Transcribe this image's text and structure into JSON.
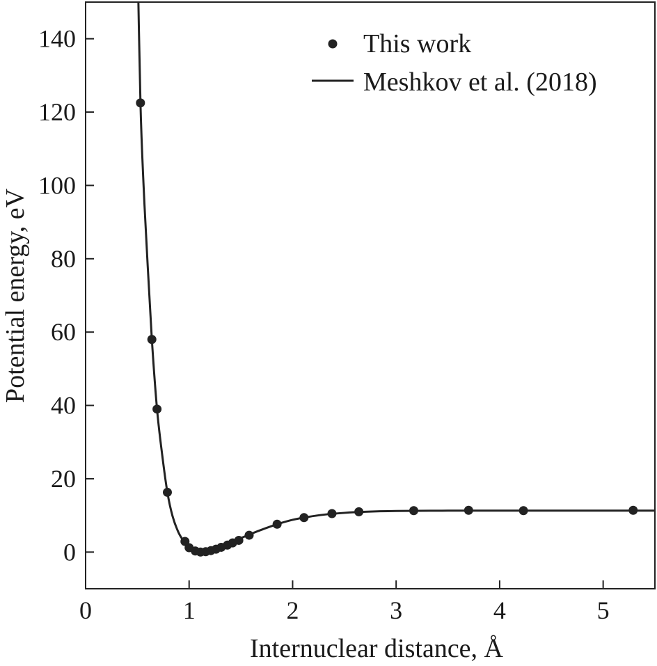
{
  "chart_data": {
    "type": "line",
    "title": "",
    "xlabel": "Internuclear distance, Å",
    "ylabel": "Potential energy, eV",
    "xlim": [
      0,
      5.5
    ],
    "ylim": [
      -10,
      150
    ],
    "x_ticks": [
      0,
      1,
      2,
      3,
      4,
      5
    ],
    "x_tick_labels": [
      "0",
      "1",
      "2",
      "3",
      "4",
      "5"
    ],
    "y_ticks": [
      0,
      20,
      40,
      60,
      80,
      100,
      120,
      140
    ],
    "y_tick_labels": [
      "0",
      "20",
      "40",
      "60",
      "80",
      "100",
      "120",
      "140"
    ],
    "grid": false,
    "legend_position": "top-right",
    "series": [
      {
        "name": "This work",
        "style": "markers",
        "color": "#222222",
        "x": [
          0.53,
          0.64,
          0.69,
          0.79,
          0.96,
          1.0,
          1.06,
          1.11,
          1.16,
          1.21,
          1.26,
          1.31,
          1.37,
          1.42,
          1.48,
          1.58,
          1.85,
          2.11,
          2.38,
          2.64,
          3.17,
          3.7,
          4.23,
          5.29
        ],
        "y": [
          122.5,
          58.0,
          39.0,
          16.3,
          2.9,
          1.2,
          0.3,
          0.0,
          0.1,
          0.4,
          0.8,
          1.3,
          1.9,
          2.5,
          3.2,
          4.6,
          7.6,
          9.4,
          10.5,
          11.0,
          11.3,
          11.4,
          11.3,
          11.4
        ]
      },
      {
        "name": "Meshkov et al. (2018)",
        "style": "line",
        "color": "#222222",
        "x": [
          0.5,
          0.53,
          0.56,
          0.6,
          0.64,
          0.69,
          0.74,
          0.79,
          0.84,
          0.9,
          0.96,
          1.0,
          1.05,
          1.1,
          1.13,
          1.16,
          1.2,
          1.26,
          1.32,
          1.4,
          1.5,
          1.6,
          1.7,
          1.85,
          2.0,
          2.15,
          2.3,
          2.5,
          2.7,
          3.0,
          3.5,
          4.0,
          4.5,
          5.0,
          5.5
        ],
        "y": [
          165,
          122.5,
          100,
          78,
          58.0,
          39.0,
          26.5,
          16.3,
          9.8,
          5.2,
          2.5,
          1.2,
          0.4,
          0.05,
          0.0,
          0.05,
          0.3,
          0.8,
          1.5,
          2.5,
          3.8,
          5.0,
          6.1,
          7.6,
          8.8,
          9.6,
          10.2,
          10.7,
          11.0,
          11.2,
          11.3,
          11.3,
          11.3,
          11.3,
          11.3
        ]
      }
    ]
  }
}
